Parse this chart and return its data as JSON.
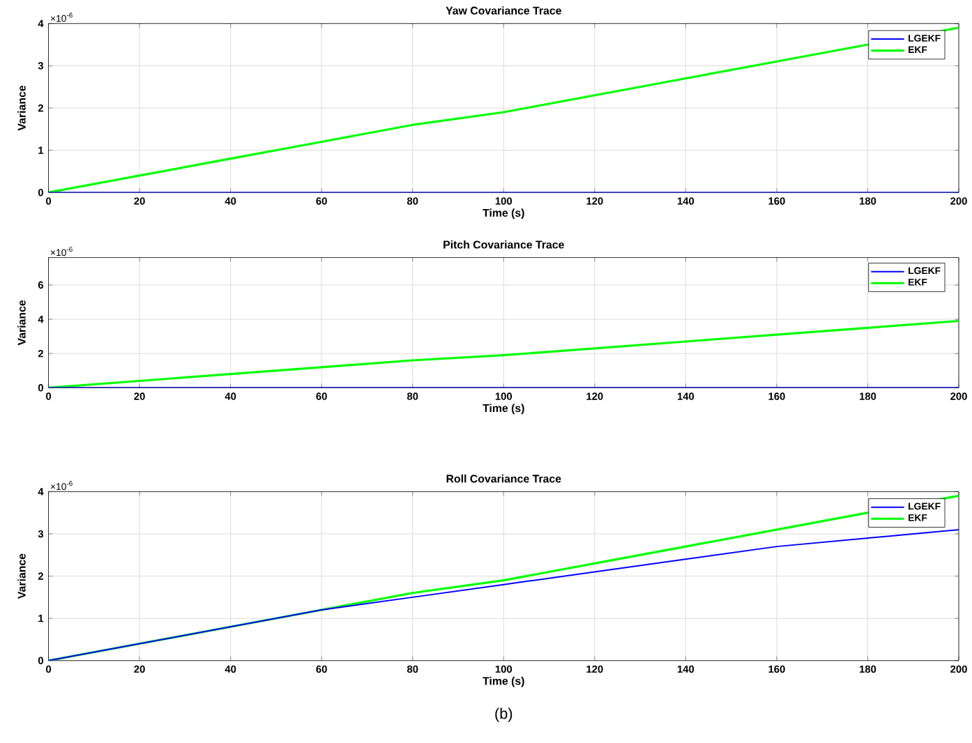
{
  "chart_data": [
    {
      "type": "line",
      "title": "Yaw Covariance Trace",
      "xlabel": "Time (s)",
      "ylabel": "Variance",
      "annotations": [
        "×10$^{-6}$"
      ],
      "x": [
        0,
        20,
        40,
        60,
        80,
        100,
        120,
        140,
        160,
        180,
        200
      ],
      "xlim": [
        0,
        200
      ],
      "xticks": [
        0,
        20,
        40,
        60,
        80,
        100,
        120,
        140,
        160,
        180,
        200
      ],
      "ylim": [
        0,
        4
      ],
      "yticks": [
        0,
        1,
        2,
        3,
        4
      ],
      "grid": true,
      "legend": "top right",
      "series": [
        {
          "name": "LGEKF",
          "color": "#0000ff",
          "values": [
            0,
            0,
            0,
            0,
            0,
            0,
            0,
            0,
            0,
            0,
            0
          ]
        },
        {
          "name": "EKF",
          "color": "#00ff00",
          "values": [
            0,
            0.4,
            0.8,
            1.2,
            1.6,
            1.9,
            2.3,
            2.7,
            3.1,
            3.5,
            3.9
          ]
        }
      ]
    },
    {
      "type": "line",
      "title": "Pitch Covariance Trace",
      "xlabel": "Time (s)",
      "ylabel": "Variance",
      "annotations": [
        "×10$^{-6}$"
      ],
      "x": [
        0,
        20,
        40,
        60,
        80,
        100,
        120,
        140,
        160,
        180,
        200
      ],
      "xlim": [
        0,
        200
      ],
      "xticks": [
        0,
        20,
        40,
        60,
        80,
        100,
        120,
        140,
        160,
        180,
        200
      ],
      "ylim": [
        0,
        7.6
      ],
      "yticks": [
        0,
        2,
        4,
        6
      ],
      "grid": true,
      "legend": "top right",
      "series": [
        {
          "name": "LGEKF",
          "color": "#0000ff",
          "values": [
            0,
            0,
            0,
            0,
            0,
            0,
            0,
            0,
            0,
            0,
            0
          ]
        },
        {
          "name": "EKF",
          "color": "#00ff00",
          "values": [
            0,
            0.4,
            0.8,
            1.2,
            1.6,
            1.9,
            2.3,
            2.7,
            3.1,
            3.5,
            3.9
          ]
        }
      ]
    },
    {
      "type": "line",
      "title": "Roll Covariance Trace",
      "xlabel": "Time (s)",
      "ylabel": "Variance",
      "annotations": [
        "×10$^{-6}$",
        "(b)"
      ],
      "x": [
        0,
        20,
        40,
        60,
        80,
        100,
        120,
        140,
        160,
        180,
        200
      ],
      "xlim": [
        0,
        200
      ],
      "xticks": [
        0,
        20,
        40,
        60,
        80,
        100,
        120,
        140,
        160,
        180,
        200
      ],
      "ylim": [
        0,
        4
      ],
      "yticks": [
        0,
        1,
        2,
        3,
        4
      ],
      "grid": true,
      "legend": "top right",
      "series": [
        {
          "name": "LGEKF",
          "color": "#0000ff",
          "values": [
            0,
            0.4,
            0.8,
            1.2,
            1.5,
            1.8,
            2.1,
            2.4,
            2.7,
            2.9,
            3.1
          ]
        },
        {
          "name": "EKF",
          "color": "#00ff00",
          "values": [
            0,
            0.4,
            0.8,
            1.2,
            1.6,
            1.9,
            2.3,
            2.7,
            3.1,
            3.5,
            3.9
          ]
        }
      ]
    }
  ]
}
